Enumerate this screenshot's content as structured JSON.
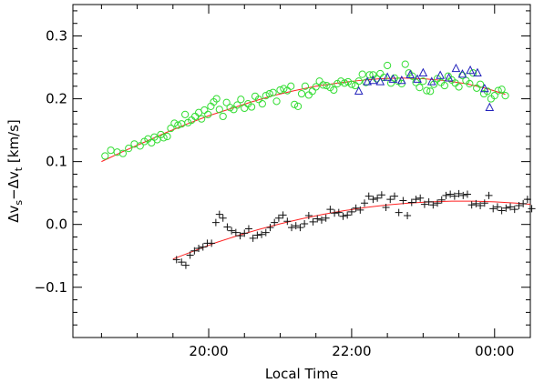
{
  "chart_data": {
    "type": "scatter",
    "xlabel": "Local Time",
    "ylabel": {
      "delta": "Δv",
      "sub1": "s",
      "minus": "−Δv",
      "sub2": "t",
      "unit": " [km/s]"
    },
    "x_unit": "hours",
    "xlim": [
      18.1,
      24.5
    ],
    "ylim": [
      -0.18,
      0.35
    ],
    "x_ticks": [
      {
        "value": 20,
        "label": "20:00"
      },
      {
        "value": 22,
        "label": "22:00"
      },
      {
        "value": 24,
        "label": "00:00"
      }
    ],
    "y_ticks": [
      {
        "value": -0.1,
        "label": "−0.1"
      },
      {
        "value": 0.0,
        "label": "0.0"
      },
      {
        "value": 0.1,
        "label": "0.1"
      },
      {
        "value": 0.2,
        "label": "0.2"
      },
      {
        "value": 0.3,
        "label": "0.3"
      }
    ],
    "grid": false,
    "series": [
      {
        "marker": "circle",
        "color": "#33dd33",
        "points": [
          [
            18.55,
            0.109
          ],
          [
            18.63,
            0.118
          ],
          [
            18.72,
            0.115
          ],
          [
            18.8,
            0.113
          ],
          [
            18.88,
            0.121
          ],
          [
            18.96,
            0.128
          ],
          [
            19.04,
            0.125
          ],
          [
            19.1,
            0.132
          ],
          [
            19.15,
            0.136
          ],
          [
            19.2,
            0.13
          ],
          [
            19.24,
            0.139
          ],
          [
            19.28,
            0.135
          ],
          [
            19.33,
            0.143
          ],
          [
            19.37,
            0.138
          ],
          [
            19.42,
            0.14
          ],
          [
            19.47,
            0.153
          ],
          [
            19.52,
            0.161
          ],
          [
            19.57,
            0.158
          ],
          [
            19.62,
            0.16
          ],
          [
            19.67,
            0.175
          ],
          [
            19.71,
            0.162
          ],
          [
            19.76,
            0.166
          ],
          [
            19.81,
            0.172
          ],
          [
            19.86,
            0.178
          ],
          [
            19.9,
            0.168
          ],
          [
            19.94,
            0.182
          ],
          [
            19.99,
            0.175
          ],
          [
            20.03,
            0.188
          ],
          [
            20.07,
            0.195
          ],
          [
            20.11,
            0.2
          ],
          [
            20.15,
            0.183
          ],
          [
            20.2,
            0.172
          ],
          [
            20.25,
            0.194
          ],
          [
            20.3,
            0.186
          ],
          [
            20.35,
            0.183
          ],
          [
            20.4,
            0.19
          ],
          [
            20.45,
            0.199
          ],
          [
            20.5,
            0.185
          ],
          [
            20.55,
            0.192
          ],
          [
            20.6,
            0.187
          ],
          [
            20.65,
            0.204
          ],
          [
            20.7,
            0.199
          ],
          [
            20.75,
            0.192
          ],
          [
            20.8,
            0.205
          ],
          [
            20.85,
            0.208
          ],
          [
            20.9,
            0.21
          ],
          [
            20.95,
            0.196
          ],
          [
            21.0,
            0.214
          ],
          [
            21.05,
            0.216
          ],
          [
            21.1,
            0.213
          ],
          [
            21.15,
            0.22
          ],
          [
            21.2,
            0.191
          ],
          [
            21.25,
            0.188
          ],
          [
            21.3,
            0.208
          ],
          [
            21.35,
            0.22
          ],
          [
            21.4,
            0.206
          ],
          [
            21.45,
            0.212
          ],
          [
            21.5,
            0.219
          ],
          [
            21.55,
            0.228
          ],
          [
            21.6,
            0.222
          ],
          [
            21.65,
            0.221
          ],
          [
            21.7,
            0.218
          ],
          [
            21.75,
            0.214
          ],
          [
            21.8,
            0.224
          ],
          [
            21.85,
            0.228
          ],
          [
            21.9,
            0.225
          ],
          [
            21.95,
            0.227
          ],
          [
            22.0,
            0.223
          ],
          [
            22.05,
            0.221
          ],
          [
            22.1,
            0.228
          ],
          [
            22.15,
            0.239
          ],
          [
            22.2,
            0.226
          ],
          [
            22.25,
            0.238
          ],
          [
            22.3,
            0.238
          ],
          [
            22.35,
            0.232
          ],
          [
            22.4,
            0.24
          ],
          [
            22.45,
            0.234
          ],
          [
            22.5,
            0.253
          ],
          [
            22.55,
            0.225
          ],
          [
            22.6,
            0.233
          ],
          [
            22.65,
            0.228
          ],
          [
            22.7,
            0.224
          ],
          [
            22.75,
            0.255
          ],
          [
            22.8,
            0.241
          ],
          [
            22.85,
            0.236
          ],
          [
            22.9,
            0.226
          ],
          [
            22.95,
            0.218
          ],
          [
            23.0,
            0.228
          ],
          [
            23.05,
            0.213
          ],
          [
            23.1,
            0.212
          ],
          [
            23.15,
            0.223
          ],
          [
            23.2,
            0.232
          ],
          [
            23.25,
            0.226
          ],
          [
            23.3,
            0.221
          ],
          [
            23.35,
            0.236
          ],
          [
            23.4,
            0.23
          ],
          [
            23.45,
            0.225
          ],
          [
            23.5,
            0.219
          ],
          [
            23.55,
            0.237
          ],
          [
            23.6,
            0.229
          ],
          [
            23.65,
            0.224
          ],
          [
            23.7,
            0.241
          ],
          [
            23.75,
            0.217
          ],
          [
            23.8,
            0.223
          ],
          [
            23.85,
            0.208
          ],
          [
            23.9,
            0.212
          ],
          [
            23.95,
            0.2
          ],
          [
            24.0,
            0.205
          ],
          [
            24.05,
            0.213
          ],
          [
            24.1,
            0.215
          ],
          [
            24.15,
            0.205
          ]
        ]
      },
      {
        "marker": "triangle",
        "color": "#2222bb",
        "points": [
          [
            22.1,
            0.212
          ],
          [
            22.22,
            0.227
          ],
          [
            22.3,
            0.229
          ],
          [
            22.4,
            0.227
          ],
          [
            22.5,
            0.234
          ],
          [
            22.58,
            0.231
          ],
          [
            22.7,
            0.229
          ],
          [
            22.82,
            0.238
          ],
          [
            22.92,
            0.231
          ],
          [
            23.0,
            0.241
          ],
          [
            23.12,
            0.227
          ],
          [
            23.24,
            0.237
          ],
          [
            23.36,
            0.233
          ],
          [
            23.46,
            0.248
          ],
          [
            23.55,
            0.239
          ],
          [
            23.66,
            0.245
          ],
          [
            23.76,
            0.241
          ],
          [
            23.86,
            0.216
          ],
          [
            23.93,
            0.186
          ]
        ]
      },
      {
        "marker": "plus",
        "color": "#111111",
        "points": [
          [
            19.55,
            -0.056
          ],
          [
            19.62,
            -0.06
          ],
          [
            19.68,
            -0.065
          ],
          [
            19.74,
            -0.049
          ],
          [
            19.8,
            -0.042
          ],
          [
            19.86,
            -0.038
          ],
          [
            19.92,
            -0.036
          ],
          [
            19.98,
            -0.03
          ],
          [
            20.04,
            -0.03
          ],
          [
            20.1,
            0.003
          ],
          [
            20.15,
            0.016
          ],
          [
            20.2,
            0.01
          ],
          [
            20.26,
            -0.004
          ],
          [
            20.32,
            -0.01
          ],
          [
            20.38,
            -0.013
          ],
          [
            20.44,
            -0.018
          ],
          [
            20.5,
            -0.014
          ],
          [
            20.56,
            -0.007
          ],
          [
            20.62,
            -0.022
          ],
          [
            20.68,
            -0.017
          ],
          [
            20.74,
            -0.016
          ],
          [
            20.8,
            -0.013
          ],
          [
            20.86,
            -0.005
          ],
          [
            20.92,
            0.003
          ],
          [
            20.98,
            0.01
          ],
          [
            21.04,
            0.015
          ],
          [
            21.1,
            0.005
          ],
          [
            21.16,
            -0.005
          ],
          [
            21.22,
            -0.002
          ],
          [
            21.28,
            -0.005
          ],
          [
            21.34,
            0.001
          ],
          [
            21.4,
            0.014
          ],
          [
            21.46,
            0.004
          ],
          [
            21.52,
            0.009
          ],
          [
            21.58,
            0.007
          ],
          [
            21.64,
            0.01
          ],
          [
            21.7,
            0.024
          ],
          [
            21.76,
            0.018
          ],
          [
            21.82,
            0.019
          ],
          [
            21.88,
            0.013
          ],
          [
            21.94,
            0.015
          ],
          [
            22.0,
            0.02
          ],
          [
            22.06,
            0.026
          ],
          [
            22.12,
            0.023
          ],
          [
            22.18,
            0.034
          ],
          [
            22.24,
            0.045
          ],
          [
            22.3,
            0.04
          ],
          [
            22.36,
            0.042
          ],
          [
            22.42,
            0.047
          ],
          [
            22.48,
            0.027
          ],
          [
            22.54,
            0.04
          ],
          [
            22.6,
            0.045
          ],
          [
            22.66,
            0.019
          ],
          [
            22.72,
            0.038
          ],
          [
            22.78,
            0.014
          ],
          [
            22.84,
            0.035
          ],
          [
            22.9,
            0.04
          ],
          [
            22.96,
            0.042
          ],
          [
            23.02,
            0.032
          ],
          [
            23.08,
            0.036
          ],
          [
            23.14,
            0.031
          ],
          [
            23.2,
            0.034
          ],
          [
            23.26,
            0.039
          ],
          [
            23.32,
            0.046
          ],
          [
            23.38,
            0.048
          ],
          [
            23.44,
            0.045
          ],
          [
            23.5,
            0.049
          ],
          [
            23.56,
            0.046
          ],
          [
            23.62,
            0.048
          ],
          [
            23.68,
            0.031
          ],
          [
            23.74,
            0.033
          ],
          [
            23.8,
            0.03
          ],
          [
            23.86,
            0.034
          ],
          [
            23.92,
            0.046
          ],
          [
            23.98,
            0.025
          ],
          [
            24.04,
            0.028
          ],
          [
            24.1,
            0.022
          ],
          [
            24.16,
            0.026
          ],
          [
            24.22,
            0.028
          ],
          [
            24.28,
            0.024
          ],
          [
            24.34,
            0.03
          ],
          [
            24.4,
            0.033
          ],
          [
            24.46,
            0.04
          ],
          [
            24.52,
            0.025
          ]
        ]
      }
    ],
    "fits": [
      {
        "color": "#ff2222",
        "points": [
          [
            18.5,
            0.1
          ],
          [
            18.8,
            0.116
          ],
          [
            19.1,
            0.131
          ],
          [
            19.4,
            0.146
          ],
          [
            19.7,
            0.16
          ],
          [
            20.0,
            0.173
          ],
          [
            20.3,
            0.184
          ],
          [
            20.6,
            0.195
          ],
          [
            20.9,
            0.205
          ],
          [
            21.2,
            0.213
          ],
          [
            21.5,
            0.22
          ],
          [
            21.8,
            0.225
          ],
          [
            22.1,
            0.229
          ],
          [
            22.4,
            0.232
          ],
          [
            22.7,
            0.233
          ],
          [
            23.0,
            0.232
          ],
          [
            23.3,
            0.229
          ],
          [
            23.6,
            0.224
          ],
          [
            23.9,
            0.216
          ],
          [
            24.15,
            0.207
          ]
        ]
      },
      {
        "color": "#ff2222",
        "points": [
          [
            19.5,
            -0.055
          ],
          [
            19.8,
            -0.042
          ],
          [
            20.1,
            -0.029
          ],
          [
            20.4,
            -0.018
          ],
          [
            20.7,
            -0.008
          ],
          [
            21.0,
            0.001
          ],
          [
            21.3,
            0.009
          ],
          [
            21.6,
            0.016
          ],
          [
            21.9,
            0.022
          ],
          [
            22.2,
            0.027
          ],
          [
            22.5,
            0.031
          ],
          [
            22.8,
            0.034
          ],
          [
            23.1,
            0.036
          ],
          [
            23.4,
            0.037
          ],
          [
            23.7,
            0.037
          ],
          [
            24.0,
            0.036
          ],
          [
            24.3,
            0.034
          ],
          [
            24.5,
            0.032
          ]
        ]
      }
    ]
  }
}
